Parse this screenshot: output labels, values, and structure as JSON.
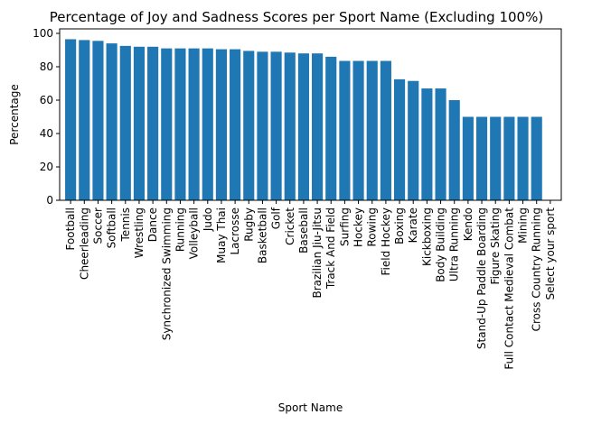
{
  "chart_data": {
    "type": "bar",
    "title": "Percentage of Joy and Sadness Scores per Sport Name (Excluding 100%)",
    "xlabel": "Sport Name",
    "ylabel": "Percentage",
    "ylim": [
      0,
      100
    ],
    "yticks": [
      0,
      20,
      40,
      60,
      80,
      100
    ],
    "grid": false,
    "color": "#1f77b4",
    "categories": [
      "Football",
      "Cheerleading",
      "Soccer",
      "Softball",
      "Tennis",
      "Wrestling",
      "Dance",
      "Synchronized Swimming",
      "Running",
      "Volleyball",
      "Judo",
      "Muay Thai",
      "Lacrosse",
      "Rugby",
      "Basketball",
      "Golf",
      "Cricket",
      "Baseball",
      "Brazilian Jiu-Jitsu",
      "Track And Field",
      "Surfing",
      "Hockey",
      "Rowing",
      "Field Hockey",
      "Boxing",
      "Karate",
      "Kickboxing",
      "Body Building",
      "Ultra Running",
      "Kendo",
      "Stand-Up Paddle Boarding",
      "Figure Skating",
      "Full Contact Medieval Combat",
      "Mining",
      "Cross Country Running",
      "Select your sport"
    ],
    "values": [
      96.5,
      96,
      95.5,
      94,
      92.5,
      92,
      92,
      91,
      91,
      91,
      91,
      90.5,
      90.5,
      89.5,
      89,
      89,
      88.5,
      88,
      88,
      86,
      83.5,
      83.5,
      83.5,
      83.5,
      72.5,
      71.5,
      67,
      67,
      60,
      50,
      50,
      50,
      50,
      50,
      50,
      0
    ]
  }
}
